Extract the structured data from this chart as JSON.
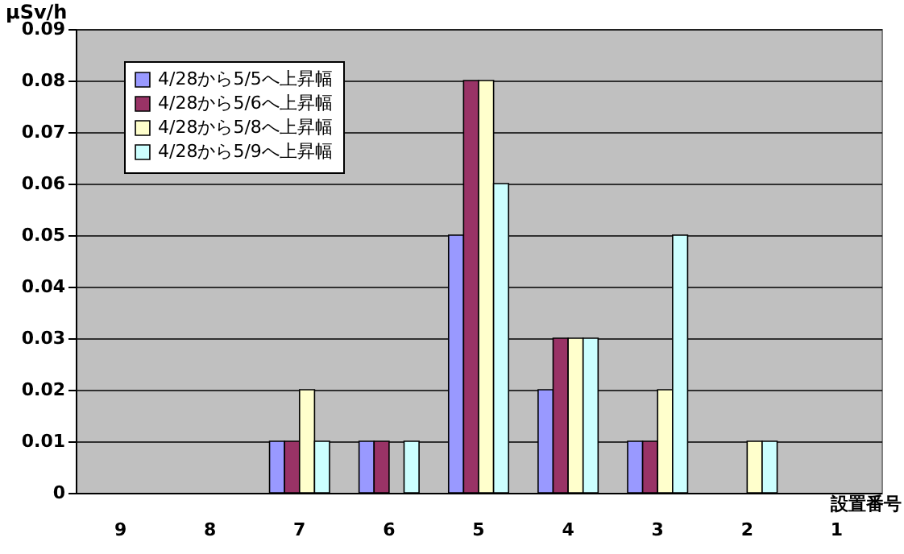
{
  "chart_data": {
    "type": "bar",
    "ylabel": "μSv/h",
    "xlabel": "設置番号",
    "categories": [
      "9",
      "8",
      "7",
      "6",
      "5",
      "4",
      "3",
      "2",
      "1"
    ],
    "series": [
      {
        "name": "4/28から5/5へ上昇幅",
        "color": "#9999ff",
        "values": [
          0,
          0,
          0.01,
          0.01,
          0.05,
          0.02,
          0.01,
          0,
          0
        ]
      },
      {
        "name": "4/28から5/6へ上昇幅",
        "color": "#993366",
        "values": [
          0,
          0,
          0.01,
          0.01,
          0.08,
          0.03,
          0.01,
          0,
          0
        ]
      },
      {
        "name": "4/28から5/8へ上昇幅",
        "color": "#ffffcc",
        "values": [
          0,
          0,
          0.02,
          0,
          0.08,
          0.03,
          0.02,
          0.01,
          0
        ]
      },
      {
        "name": "4/28から5/9へ上昇幅",
        "color": "#ccffff",
        "values": [
          0,
          0,
          0.01,
          0.01,
          0.06,
          0.03,
          0.05,
          0.01,
          0
        ]
      }
    ],
    "ylim": [
      0,
      0.09
    ],
    "yticks": [
      0,
      0.01,
      0.02,
      0.03,
      0.04,
      0.05,
      0.06,
      0.07,
      0.08,
      0.09
    ],
    "grid": "y",
    "legend": "top left"
  }
}
